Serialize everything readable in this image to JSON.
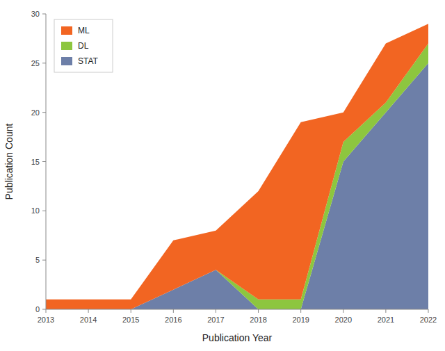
{
  "chart_data": {
    "type": "area",
    "stacked": true,
    "x": [
      2013,
      2014,
      2015,
      2016,
      2017,
      2018,
      2019,
      2020,
      2021,
      2022
    ],
    "series": [
      {
        "name": "STAT",
        "color": "#6D7FA8",
        "values": [
          0,
          0,
          0,
          2,
          4,
          0,
          0,
          15,
          20,
          25
        ]
      },
      {
        "name": "DL",
        "color": "#8DC63F",
        "values": [
          0,
          0,
          0,
          0,
          0,
          1,
          1,
          2,
          1,
          2
        ]
      },
      {
        "name": "ML",
        "color": "#F26522",
        "values": [
          1,
          1,
          1,
          5,
          4,
          11,
          18,
          3,
          6,
          2
        ]
      }
    ],
    "xlabel": "Publication Year",
    "ylabel": "Publication Count",
    "xlim": [
      2013,
      2022
    ],
    "xticks": [
      2013,
      2014,
      2015,
      2016,
      2017,
      2018,
      2019,
      2020,
      2021,
      2022
    ],
    "ylim": [
      0,
      30
    ],
    "yticks": [
      0,
      5,
      10,
      15,
      20,
      25,
      30
    ],
    "grid": false,
    "legend": "upper left"
  }
}
